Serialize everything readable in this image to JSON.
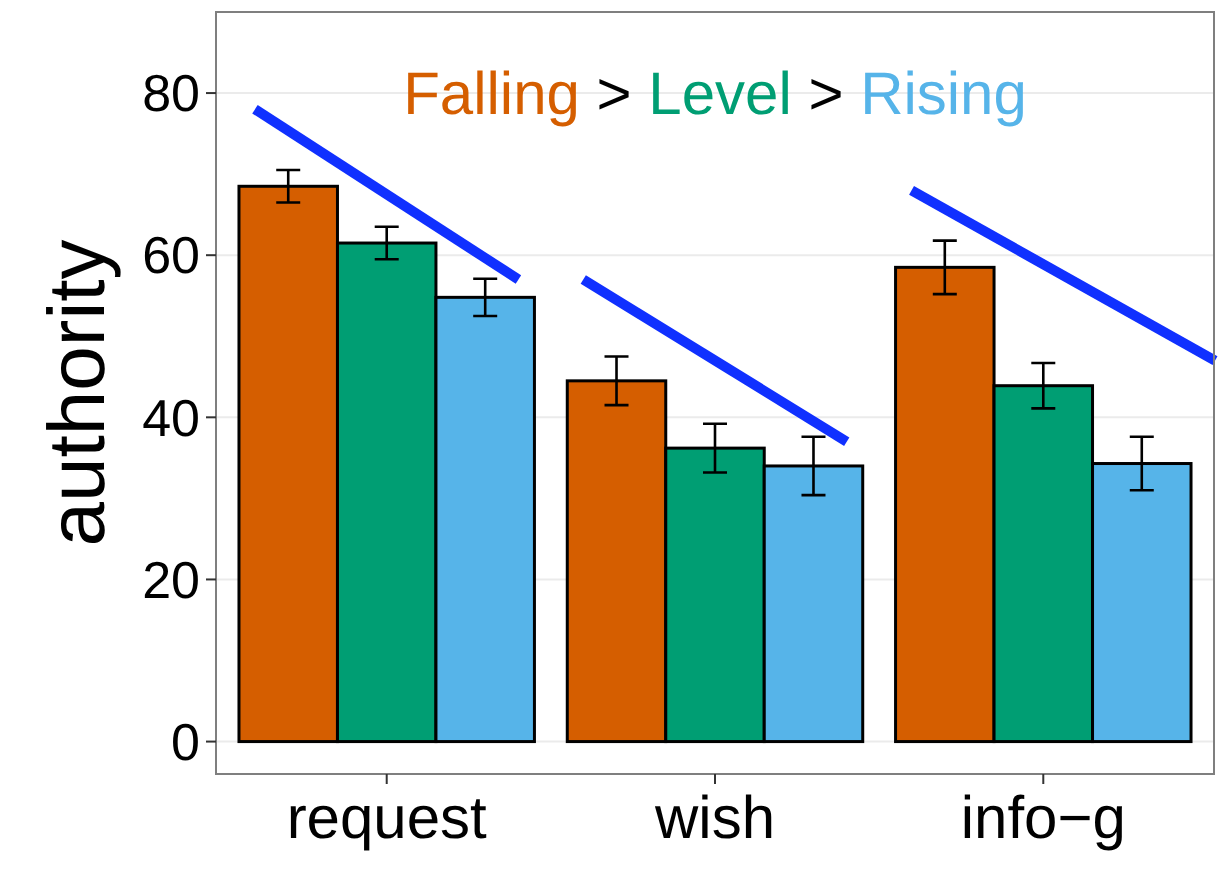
{
  "chart_data": {
    "type": "bar",
    "ylabel": "authority",
    "categories": [
      "request",
      "wish",
      "info−g"
    ],
    "series": [
      {
        "name": "Falling",
        "color": "#d55e00",
        "values": [
          68.5,
          44.5,
          58.5
        ],
        "errors": [
          2,
          3,
          3.3
        ]
      },
      {
        "name": "Level",
        "color": "#009e73",
        "values": [
          61.5,
          36.2,
          43.9
        ],
        "errors": [
          2,
          3,
          2.8
        ]
      },
      {
        "name": "Rising",
        "color": "#56b4e9",
        "values": [
          54.8,
          34,
          34.3
        ],
        "errors": [
          2.3,
          3.6,
          3.3
        ]
      }
    ],
    "ylim": [
      -4,
      90
    ],
    "yticks": [
      0,
      20,
      40,
      60,
      80
    ],
    "grid": "y",
    "legend": "top",
    "annotations": [
      ">",
      ">"
    ]
  }
}
